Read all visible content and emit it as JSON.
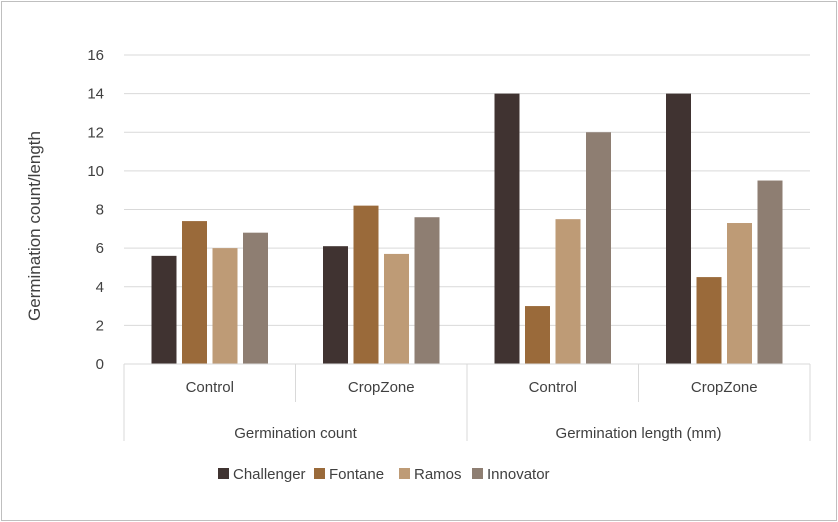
{
  "chart_data": {
    "type": "bar",
    "title": "",
    "xlabel": "",
    "ylabel": "Germination count/length",
    "ylim": [
      0,
      16
    ],
    "yticks": [
      "0",
      "2",
      "4",
      "6",
      "8",
      "10",
      "12",
      "14",
      "16"
    ],
    "grid": true,
    "legend_position": "bottom",
    "categories": [
      {
        "label": "Control",
        "group": "Germination count"
      },
      {
        "label": "CropZone",
        "group": "Germination count"
      },
      {
        "label": "Control",
        "group": "Germination length (mm)"
      },
      {
        "label": "CropZone",
        "group": "Germination length (mm)"
      }
    ],
    "groups": [
      "Germination count",
      "Germination length (mm)"
    ],
    "series": [
      {
        "name": "Challenger",
        "color": "#403331",
        "values": [
          5.6,
          6.1,
          14.0,
          14.0
        ]
      },
      {
        "name": "Fontane",
        "color": "#9a6a3a",
        "values": [
          7.4,
          8.2,
          3.0,
          4.5
        ]
      },
      {
        "name": "Ramos",
        "color": "#be9b76",
        "values": [
          6.0,
          5.7,
          7.5,
          7.3
        ]
      },
      {
        "name": "Innovator",
        "color": "#8e7e72",
        "values": [
          6.8,
          7.6,
          12.0,
          9.5
        ]
      }
    ]
  }
}
